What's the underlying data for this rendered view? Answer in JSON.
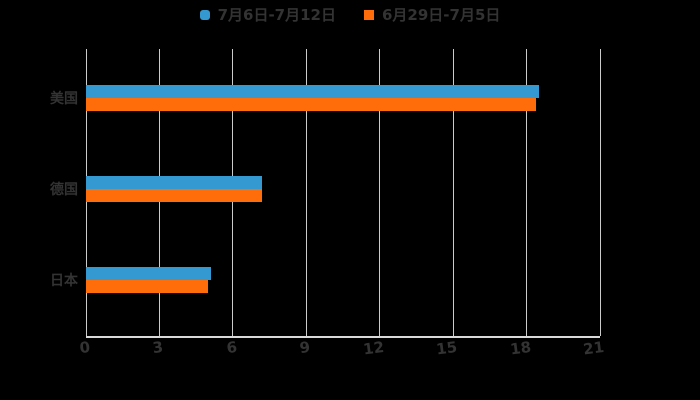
{
  "page": {
    "background": "#000000"
  },
  "chart_data": {
    "type": "bar",
    "orientation": "horizontal",
    "title": "",
    "categories": [
      "美国",
      "德国",
      "日本"
    ],
    "series": [
      {
        "name": "7月6日-7月12日",
        "color": "#3499d0",
        "marker": "rounded",
        "values": [
          18.5,
          7.2,
          5.1
        ]
      },
      {
        "name": "6月29日-7月5日",
        "color": "#ff6c0a",
        "marker": "square",
        "values": [
          18.4,
          7.2,
          5.0
        ]
      }
    ],
    "xlim": [
      0,
      21
    ],
    "xticks": [
      0,
      3,
      6,
      9,
      12,
      15,
      18,
      21
    ],
    "xlabel": "",
    "ylabel": "",
    "grid": true,
    "legend_position": "top-center",
    "styles": {
      "grid_color": "#cbcbcb",
      "axis_color": "#d9d9d9",
      "text_color": "#333333",
      "legend_text_color": "#333333"
    }
  }
}
